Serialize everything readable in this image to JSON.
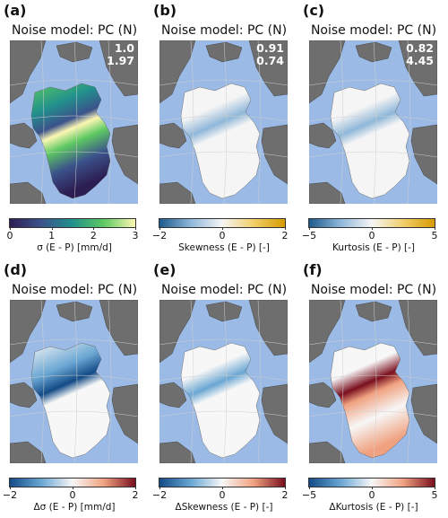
{
  "panels": [
    {
      "label": "(a)",
      "title": "Noise model: PC (N)",
      "stat1": "1.0",
      "stat2": "1.97",
      "cbar_label": "σ (E - P) [mm/d]",
      "ticks": [
        "0",
        "1",
        "2",
        "3"
      ],
      "cmap": "viridis",
      "colors": [
        "#2d1e52",
        "#3b528b",
        "#21918c",
        "#5ec962",
        "#fdf7b3"
      ]
    },
    {
      "label": "(b)",
      "title": "Noise model: PC (N)",
      "stat1": "0.91",
      "stat2": "0.74",
      "cbar_label": "Skewness (E - P) [-]",
      "ticks": [
        "−2",
        "0",
        "2"
      ],
      "cmap": "diverging-blue-yellow",
      "colors": [
        "#1c5a8c",
        "#8fb7d9",
        "#f5f5f5",
        "#f1cf6a",
        "#d69b00"
      ]
    },
    {
      "label": "(c)",
      "title": "Noise model: PC (N)",
      "stat1": "0.82",
      "stat2": "4.45",
      "cbar_label": "Kurtosis (E - P) [-]",
      "ticks": [
        "−5",
        "0",
        "5"
      ],
      "cmap": "diverging-blue-yellow",
      "colors": [
        "#1c5a8c",
        "#8fb7d9",
        "#f5f5f5",
        "#f1cf6a",
        "#d69b00"
      ]
    },
    {
      "label": "(d)",
      "title": "Noise model: PC (N)",
      "stat1": "",
      "stat2": "",
      "cbar_label": "Δσ (E - P) [mm/d]",
      "ticks": [
        "−2",
        "0",
        "2"
      ],
      "cmap": "RdBu_r",
      "colors": [
        "#134b86",
        "#6aa6d3",
        "#f7f7f7",
        "#f0a280",
        "#7a0f1e"
      ]
    },
    {
      "label": "(e)",
      "title": "Noise model: PC (N)",
      "stat1": "",
      "stat2": "",
      "cbar_label": "ΔSkewness (E - P) [-]",
      "ticks": [
        "−2",
        "0",
        "2"
      ],
      "cmap": "RdBu_r",
      "colors": [
        "#134b86",
        "#6aa6d3",
        "#f7f7f7",
        "#f0a280",
        "#7a0f1e"
      ]
    },
    {
      "label": "(f)",
      "title": "Noise model: PC (N)",
      "stat1": "",
      "stat2": "",
      "cbar_label": "ΔKurtosis (E - P) [-]",
      "ticks": [
        "−5",
        "0",
        "5"
      ],
      "cmap": "RdBu_r",
      "colors": [
        "#134b86",
        "#6aa6d3",
        "#f7f7f7",
        "#f0a280",
        "#7a0f1e"
      ]
    }
  ],
  "land_color": "#6e6e6e",
  "sea_color": "#9bbbe6"
}
